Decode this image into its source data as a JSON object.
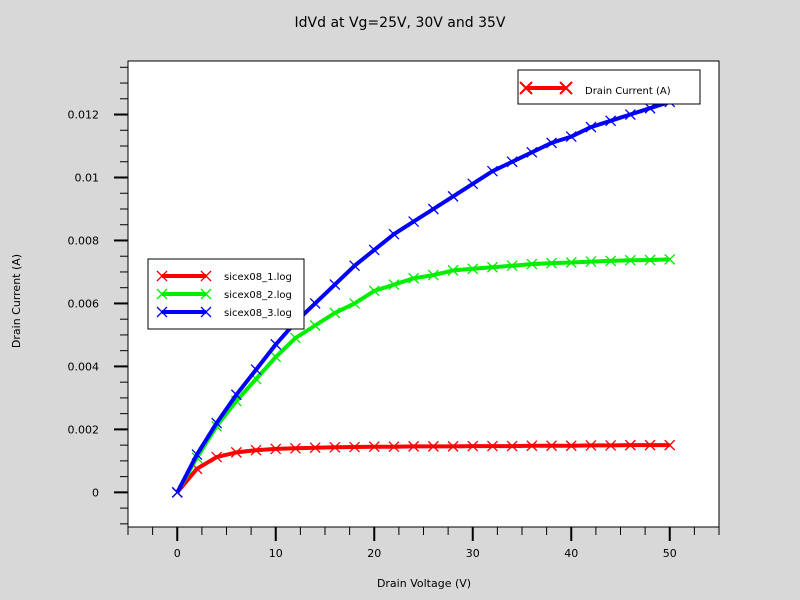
{
  "chart_data": {
    "type": "line",
    "title": "IdVd at Vg=25V, 30V and 35V",
    "xlabel": "Drain Voltage (V)",
    "ylabel": "Drain Current (A)",
    "xlim": [
      -5,
      55
    ],
    "ylim": [
      -0.0011,
      0.0137
    ],
    "x_ticks": [
      0,
      10,
      20,
      30,
      40,
      50
    ],
    "y_ticks": [
      0,
      0.002,
      0.004,
      0.006,
      0.008,
      0.01,
      0.012
    ],
    "y_tick_labels": [
      "0",
      "0.002",
      "0.004",
      "0.006",
      "0.008",
      "0.01",
      "0.012"
    ],
    "grid": false,
    "quantity_legend": {
      "label": "Drain Current (A)",
      "color": "#ff0000",
      "placement": "top-right"
    },
    "series_legend_placement": "center-left",
    "series": [
      {
        "name": "sicex08_1.log",
        "color": "#ff0000",
        "x": [
          0,
          2,
          4,
          6,
          8,
          10,
          12,
          14,
          16,
          18,
          20,
          22,
          24,
          26,
          28,
          30,
          32,
          34,
          36,
          38,
          40,
          42,
          44,
          46,
          48,
          50
        ],
        "y": [
          0,
          0.00075,
          0.00112,
          0.00127,
          0.00134,
          0.00138,
          0.0014,
          0.00142,
          0.00143,
          0.00144,
          0.00145,
          0.00145,
          0.00146,
          0.00146,
          0.00146,
          0.00147,
          0.00147,
          0.00147,
          0.00148,
          0.00148,
          0.00148,
          0.00149,
          0.00149,
          0.0015,
          0.0015,
          0.0015
        ]
      },
      {
        "name": "sicex08_2.log",
        "color": "#00ee00",
        "x": [
          0,
          2,
          4,
          6,
          8,
          10,
          12,
          14,
          16,
          18,
          20,
          22,
          24,
          26,
          28,
          30,
          32,
          34,
          36,
          38,
          40,
          42,
          44,
          46,
          48,
          50
        ],
        "y": [
          0,
          0.0011,
          0.0021,
          0.0029,
          0.0036,
          0.0043,
          0.0049,
          0.0053,
          0.0057,
          0.006,
          0.0064,
          0.0066,
          0.0068,
          0.0069,
          0.00705,
          0.0071,
          0.00715,
          0.0072,
          0.00725,
          0.00728,
          0.0073,
          0.00733,
          0.00735,
          0.00737,
          0.00738,
          0.0074
        ]
      },
      {
        "name": "sicex08_3.log",
        "color": "#0000ff",
        "x": [
          0,
          2,
          4,
          6,
          8,
          10,
          12,
          14,
          16,
          18,
          20,
          22,
          24,
          26,
          28,
          30,
          32,
          34,
          36,
          38,
          40,
          42,
          44,
          46,
          48,
          50
        ],
        "y": [
          0,
          0.0012,
          0.0022,
          0.0031,
          0.0039,
          0.0047,
          0.0054,
          0.006,
          0.0066,
          0.0072,
          0.0077,
          0.0082,
          0.0086,
          0.009,
          0.0094,
          0.0098,
          0.0102,
          0.0105,
          0.0108,
          0.0111,
          0.0113,
          0.0116,
          0.0118,
          0.012,
          0.0122,
          0.0124
        ]
      }
    ]
  }
}
